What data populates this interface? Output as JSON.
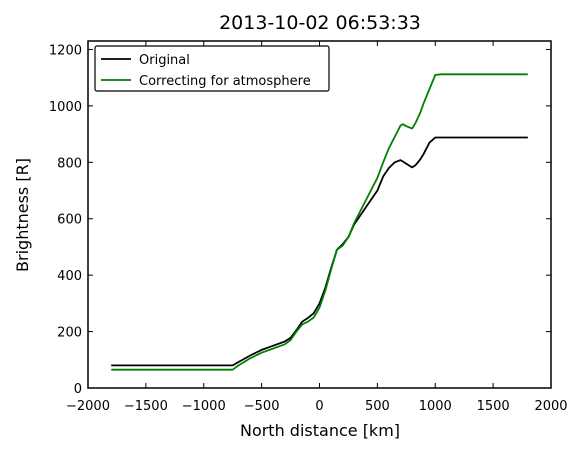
{
  "chart_data": {
    "type": "line",
    "title": "2013-10-02 06:53:33",
    "xlabel": "North distance [km]",
    "ylabel": "Brightness [R]",
    "xlim": [
      -2000,
      2000
    ],
    "ylim": [
      0,
      1230
    ],
    "xticks": [
      -2000,
      -1500,
      -1000,
      -500,
      0,
      500,
      1000,
      1500,
      2000
    ],
    "xtick_labels": [
      "−2000",
      "−1500",
      "−1000",
      "−500",
      "0",
      "500",
      "1000",
      "1500",
      "2000"
    ],
    "yticks": [
      0,
      200,
      400,
      600,
      800,
      1000,
      1200
    ],
    "ytick_labels": [
      "0",
      "200",
      "400",
      "600",
      "800",
      "1000",
      "1200"
    ],
    "grid": false,
    "legend_position": "top-left",
    "series": [
      {
        "name": "Original",
        "color": "#000000",
        "x": [
          -1800,
          -750,
          -700,
          -600,
          -500,
          -400,
          -300,
          -250,
          -200,
          -150,
          -100,
          -50,
          0,
          50,
          100,
          150,
          200,
          250,
          300,
          400,
          500,
          550,
          600,
          650,
          700,
          720,
          750,
          800,
          830,
          870,
          900,
          950,
          1000,
          1050,
          1800
        ],
        "y": [
          80,
          80,
          92,
          115,
          135,
          150,
          165,
          178,
          205,
          235,
          248,
          265,
          300,
          355,
          425,
          490,
          510,
          535,
          580,
          640,
          700,
          750,
          780,
          800,
          808,
          803,
          795,
          782,
          790,
          810,
          830,
          870,
          888,
          888,
          888
        ]
      },
      {
        "name": "Correcting for atmosphere",
        "color": "#008000",
        "x": [
          -1800,
          -750,
          -700,
          -600,
          -500,
          -400,
          -300,
          -250,
          -200,
          -150,
          -100,
          -50,
          0,
          50,
          100,
          150,
          200,
          250,
          300,
          400,
          500,
          550,
          600,
          650,
          700,
          720,
          750,
          800,
          830,
          870,
          900,
          950,
          1000,
          1050,
          1800
        ],
        "y": [
          65,
          65,
          80,
          105,
          125,
          140,
          155,
          170,
          200,
          225,
          235,
          250,
          285,
          345,
          420,
          490,
          505,
          535,
          585,
          665,
          745,
          800,
          850,
          890,
          930,
          935,
          928,
          920,
          940,
          975,
          1010,
          1060,
          1110,
          1112,
          1112
        ]
      }
    ]
  }
}
